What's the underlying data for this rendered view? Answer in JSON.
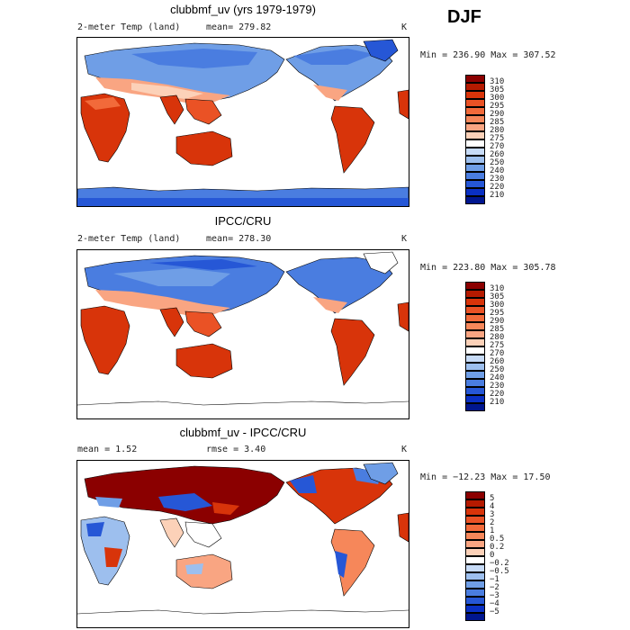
{
  "season": "DJF",
  "panels": [
    {
      "title": "clubbmf_uv (yrs 1979-1979)",
      "left_label": "2-meter Temp (land)",
      "stat_label": "mean= 279.82",
      "units": "K",
      "minmax": "Min = 236.90 Max = 307.52",
      "levels": [
        "310",
        "305",
        "300",
        "295",
        "290",
        "285",
        "280",
        "275",
        "270",
        "260",
        "250",
        "240",
        "230",
        "220",
        "210"
      ],
      "colors": [
        "#8b0000",
        "#b51a00",
        "#d8340a",
        "#ea5225",
        "#f26a3a",
        "#f6875a",
        "#f9a582",
        "#fcd1b8",
        "#ffffff",
        "#c7dbf7",
        "#9dbfee",
        "#6f9ee6",
        "#4a7de0",
        "#2657d6",
        "#0a30c4",
        "#00168f"
      ]
    },
    {
      "title": "IPCC/CRU",
      "left_label": "2-meter Temp (land)",
      "stat_label": "mean= 278.30",
      "units": "K",
      "minmax": "Min = 223.80 Max = 305.78",
      "levels": [
        "310",
        "305",
        "300",
        "295",
        "290",
        "285",
        "280",
        "275",
        "270",
        "260",
        "250",
        "240",
        "230",
        "220",
        "210"
      ],
      "colors": [
        "#8b0000",
        "#b51a00",
        "#d8340a",
        "#ea5225",
        "#f26a3a",
        "#f6875a",
        "#f9a582",
        "#fcd1b8",
        "#ffffff",
        "#c7dbf7",
        "#9dbfee",
        "#6f9ee6",
        "#4a7de0",
        "#2657d6",
        "#0a30c4",
        "#00168f"
      ]
    },
    {
      "title": "clubbmf_uv - IPCC/CRU",
      "left_label": "mean =    1.52",
      "stat_label": "rmse =    3.40",
      "units": "K",
      "minmax": "Min = −12.23 Max =   17.50",
      "levels": [
        "5",
        "4",
        "3",
        "2",
        "1",
        "0.5",
        "0.2",
        "0",
        "−0.2",
        "−0.5",
        "−1",
        "−2",
        "−3",
        "−4",
        "−5"
      ],
      "colors": [
        "#8b0000",
        "#b51a00",
        "#d8340a",
        "#ea5225",
        "#f26a3a",
        "#f6875a",
        "#f9a582",
        "#fcd1b8",
        "#ffffff",
        "#c7dbf7",
        "#9dbfee",
        "#6f9ee6",
        "#4a7de0",
        "#2657d6",
        "#0a30c4",
        "#00168f"
      ]
    }
  ]
}
